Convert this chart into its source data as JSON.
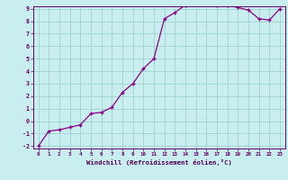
{
  "x": [
    0,
    1,
    2,
    3,
    4,
    5,
    6,
    7,
    8,
    9,
    10,
    11,
    12,
    13,
    14,
    15,
    16,
    17,
    18,
    19,
    20,
    21,
    22,
    23
  ],
  "y": [
    -2.0,
    -0.8,
    -0.7,
    -0.5,
    -0.3,
    0.6,
    0.7,
    1.1,
    2.3,
    3.0,
    4.2,
    5.0,
    8.2,
    8.7,
    9.3,
    9.6,
    9.4,
    9.3,
    9.3,
    9.1,
    8.9,
    8.2,
    8.1,
    9.0
  ],
  "xlabel": "Windchill (Refroidissement éolien,°C)",
  "ylim": [
    -2,
    9
  ],
  "xlim": [
    -0.5,
    23.5
  ],
  "yticks": [
    -2,
    -1,
    0,
    1,
    2,
    3,
    4,
    5,
    6,
    7,
    8,
    9
  ],
  "xticks": [
    0,
    1,
    2,
    3,
    4,
    5,
    6,
    7,
    8,
    9,
    10,
    11,
    12,
    13,
    14,
    15,
    16,
    17,
    18,
    19,
    20,
    21,
    22,
    23
  ],
  "line_color": "#880088",
  "marker": "+",
  "bg_color": "#c8eef0",
  "grid_color": "#99cccc",
  "tick_color": "#660066",
  "label_color": "#550055",
  "spine_color": "#660066"
}
